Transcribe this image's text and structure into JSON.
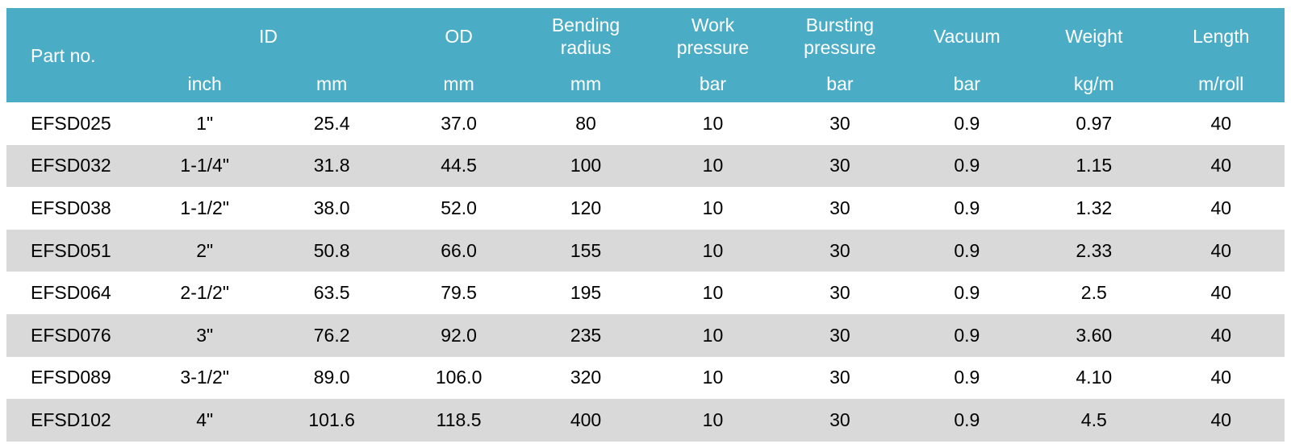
{
  "colors": {
    "header_bg": "#4BACC6",
    "header_text": "#FFFFFF",
    "row_bg": "#FFFFFF",
    "row_alt_bg": "#D9D9D9",
    "body_text": "#000000"
  },
  "table": {
    "header": {
      "part_no_label": "Part no.",
      "groups": [
        {
          "label": "ID",
          "colspan": 2
        },
        {
          "label": "OD",
          "colspan": 1
        },
        {
          "label": "Bending\nradius",
          "colspan": 1
        },
        {
          "label": "Work\npressure",
          "colspan": 1
        },
        {
          "label": "Bursting\npressure",
          "colspan": 1
        },
        {
          "label": "Vacuum",
          "colspan": 1
        },
        {
          "label": "Weight",
          "colspan": 1
        },
        {
          "label": "Length",
          "colspan": 1
        }
      ],
      "units": [
        "inch",
        "mm",
        "mm",
        "mm",
        "bar",
        "bar",
        "bar",
        "kg/m",
        "m/roll"
      ]
    },
    "rows": [
      {
        "part_no": "EFSD025",
        "id_inch": "1\"",
        "id_mm": "25.4",
        "od_mm": "37.0",
        "bending_radius_mm": "80",
        "work_pressure_bar": "10",
        "bursting_pressure_bar": "30",
        "vacuum_bar": "0.9",
        "weight_kg_m": "0.97",
        "length_m_roll": "40"
      },
      {
        "part_no": "EFSD032",
        "id_inch": "1-1/4\"",
        "id_mm": "31.8",
        "od_mm": "44.5",
        "bending_radius_mm": "100",
        "work_pressure_bar": "10",
        "bursting_pressure_bar": "30",
        "vacuum_bar": "0.9",
        "weight_kg_m": "1.15",
        "length_m_roll": "40"
      },
      {
        "part_no": "EFSD038",
        "id_inch": "1-1/2\"",
        "id_mm": "38.0",
        "od_mm": "52.0",
        "bending_radius_mm": "120",
        "work_pressure_bar": "10",
        "bursting_pressure_bar": "30",
        "vacuum_bar": "0.9",
        "weight_kg_m": "1.32",
        "length_m_roll": "40"
      },
      {
        "part_no": "EFSD051",
        "id_inch": "2\"",
        "id_mm": "50.8",
        "od_mm": "66.0",
        "bending_radius_mm": "155",
        "work_pressure_bar": "10",
        "bursting_pressure_bar": "30",
        "vacuum_bar": "0.9",
        "weight_kg_m": "2.33",
        "length_m_roll": "40"
      },
      {
        "part_no": "EFSD064",
        "id_inch": "2-1/2\"",
        "id_mm": "63.5",
        "od_mm": "79.5",
        "bending_radius_mm": "195",
        "work_pressure_bar": "10",
        "bursting_pressure_bar": "30",
        "vacuum_bar": "0.9",
        "weight_kg_m": "2.5",
        "length_m_roll": "40"
      },
      {
        "part_no": "EFSD076",
        "id_inch": "3\"",
        "id_mm": "76.2",
        "od_mm": "92.0",
        "bending_radius_mm": "235",
        "work_pressure_bar": "10",
        "bursting_pressure_bar": "30",
        "vacuum_bar": "0.9",
        "weight_kg_m": "3.60",
        "length_m_roll": "40"
      },
      {
        "part_no": "EFSD089",
        "id_inch": "3-1/2\"",
        "id_mm": "89.0",
        "od_mm": "106.0",
        "bending_radius_mm": "320",
        "work_pressure_bar": "10",
        "bursting_pressure_bar": "30",
        "vacuum_bar": "0.9",
        "weight_kg_m": "4.10",
        "length_m_roll": "40"
      },
      {
        "part_no": "EFSD102",
        "id_inch": "4\"",
        "id_mm": "101.6",
        "od_mm": "118.5",
        "bending_radius_mm": "400",
        "work_pressure_bar": "10",
        "bursting_pressure_bar": "30",
        "vacuum_bar": "0.9",
        "weight_kg_m": "4.5",
        "length_m_roll": "40"
      }
    ]
  }
}
